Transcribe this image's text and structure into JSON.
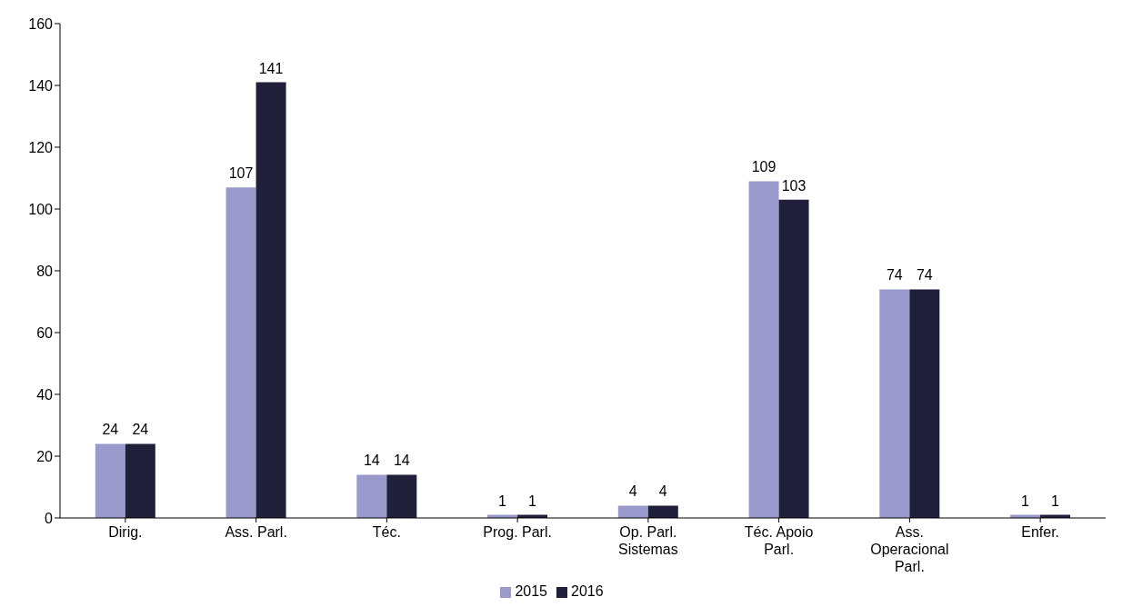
{
  "chart_data": {
    "type": "bar",
    "categories": [
      "Dirig.",
      "Ass. Parl.",
      "Téc.",
      "Prog. Parl.",
      "Op. Parl. Sistemas",
      "Téc. Apoio Parl.",
      "Ass. Operacional Parl.",
      "Enfer."
    ],
    "series": [
      {
        "name": "2015",
        "color": "#9999cc",
        "values": [
          24,
          107,
          14,
          1,
          4,
          109,
          74,
          1
        ]
      },
      {
        "name": "2016",
        "color": "#20203a",
        "values": [
          24,
          141,
          14,
          1,
          4,
          103,
          74,
          1
        ]
      }
    ],
    "ylim": [
      0,
      160
    ],
    "yticks": [
      0,
      20,
      40,
      60,
      80,
      100,
      120,
      140,
      160
    ],
    "data_labels": true,
    "grid": false,
    "legend": "bottom"
  }
}
